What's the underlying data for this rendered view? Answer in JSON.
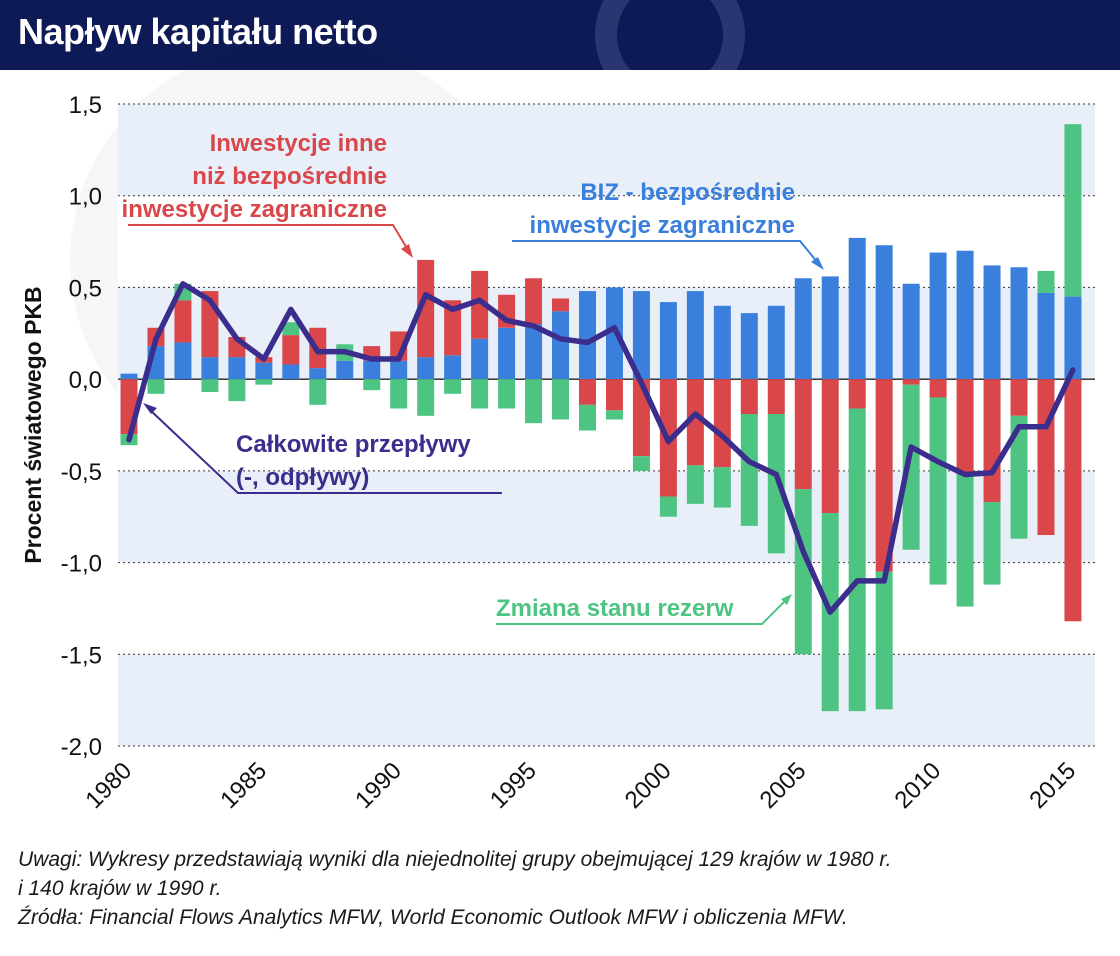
{
  "header": {
    "title": "Napływ kapitału netto"
  },
  "chart_data": {
    "type": "bar",
    "ylabel": "Procent światowego PKB",
    "ylim": [
      -2.0,
      1.5
    ],
    "yticks": [
      "1,5",
      "1,0",
      "0,5",
      "0,0",
      "-0,5",
      "-1,0",
      "-1,5",
      "-2,0"
    ],
    "ytick_values": [
      1.5,
      1.0,
      0.5,
      0.0,
      -0.5,
      -1.0,
      -1.5,
      -2.0
    ],
    "x": [
      1980,
      1981,
      1982,
      1983,
      1984,
      1985,
      1986,
      1987,
      1988,
      1989,
      1990,
      1991,
      1992,
      1993,
      1994,
      1995,
      1996,
      1997,
      1998,
      1999,
      2000,
      2001,
      2002,
      2003,
      2004,
      2005,
      2006,
      2007,
      2008,
      2009,
      2010,
      2011,
      2012,
      2013,
      2014,
      2015
    ],
    "xticks": [
      "1980",
      "1985",
      "1990",
      "1995",
      "2000",
      "2005",
      "2010",
      "2015"
    ],
    "stacked": true,
    "grid": true,
    "series": [
      {
        "name": "BIZ - bezpośrednie inwestycje zagraniczne",
        "color": "#3a7fdc",
        "kind": "bar",
        "values": [
          0.03,
          0.18,
          0.2,
          0.12,
          0.12,
          0.09,
          0.08,
          0.06,
          0.1,
          0.1,
          0.1,
          0.12,
          0.13,
          0.22,
          0.28,
          0.3,
          0.37,
          0.48,
          0.5,
          0.48,
          0.42,
          0.48,
          0.4,
          0.36,
          0.4,
          0.55,
          0.56,
          0.77,
          0.73,
          0.52,
          0.69,
          0.7,
          0.62,
          0.61,
          0.47,
          0.45
        ]
      },
      {
        "name": "Inwestycje inne niż bezpośrednie inwestycje zagraniczne",
        "color": "#d9474a",
        "kind": "bar",
        "values": [
          -0.3,
          0.1,
          0.23,
          0.36,
          0.11,
          0.03,
          0.16,
          0.22,
          0.0,
          0.08,
          0.16,
          0.53,
          0.3,
          0.37,
          0.18,
          0.25,
          0.07,
          -0.14,
          -0.17,
          -0.42,
          -0.64,
          -0.47,
          -0.48,
          -0.19,
          -0.19,
          -0.6,
          -0.73,
          -0.16,
          -1.05,
          -0.03,
          -0.1,
          -0.52,
          -0.67,
          -0.2,
          -0.85,
          -1.32
        ]
      },
      {
        "name": "Zmiana stanu rezerw",
        "color": "#4ec483",
        "kind": "bar",
        "values": [
          -0.06,
          -0.08,
          0.09,
          -0.07,
          -0.12,
          -0.03,
          0.07,
          -0.14,
          0.09,
          -0.06,
          -0.16,
          -0.2,
          -0.08,
          -0.16,
          -0.16,
          -0.24,
          -0.22,
          -0.14,
          -0.05,
          -0.08,
          -0.11,
          -0.21,
          -0.22,
          -0.61,
          -0.76,
          -0.9,
          -1.08,
          -1.65,
          -0.75,
          -0.9,
          -1.02,
          -0.72,
          -0.45,
          -0.67,
          0.12,
          0.94
        ]
      },
      {
        "name": "Całkowite przepływy (-, odpływy)",
        "color": "#3b2d8c",
        "kind": "line",
        "values": [
          -0.33,
          0.22,
          0.52,
          0.43,
          0.22,
          0.11,
          0.38,
          0.15,
          0.15,
          0.11,
          0.11,
          0.46,
          0.38,
          0.43,
          0.32,
          0.29,
          0.22,
          0.2,
          0.28,
          -0.02,
          -0.34,
          -0.19,
          -0.31,
          -0.45,
          -0.52,
          -0.94,
          -1.27,
          -1.1,
          -1.1,
          -0.37,
          -0.45,
          -0.52,
          -0.51,
          -0.26,
          -0.26,
          0.05
        ]
      }
    ],
    "annotations": {
      "other": [
        "Inwestycje inne",
        "niż bezpośrednie",
        "inwestycje zagraniczne"
      ],
      "fdi": [
        "BIZ - bezpośrednie",
        "inwestycje zagraniczne"
      ],
      "total": [
        "Całkowite przepływy",
        "(-, odpływy)"
      ],
      "reserves": [
        "Zmiana stanu rezerw"
      ]
    }
  },
  "notes": {
    "line1": "Uwagi: Wykresy przedstawiają wyniki dla niejednolitej grupy obejmującej 129 krajów w 1980 r.",
    "line2": "i 140 krajów w 1990 r.",
    "line3": "Źródła: Financial Flows Analytics MFW,  World Economic Outlook MFW i obliczenia MFW."
  }
}
